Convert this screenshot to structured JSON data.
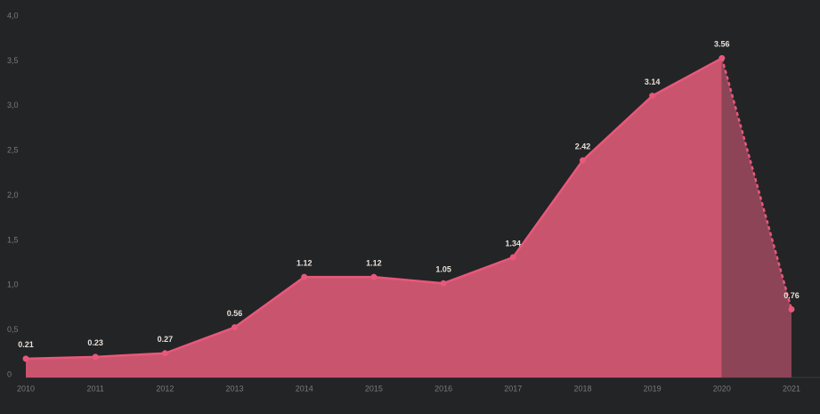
{
  "chart_data": {
    "type": "area",
    "x": [
      2010,
      2011,
      2012,
      2013,
      2014,
      2015,
      2016,
      2017,
      2018,
      2019,
      2020,
      2021
    ],
    "xlim": [
      2010,
      2021
    ],
    "xticks": [
      2010,
      2011,
      2012,
      2013,
      2014,
      2015,
      2016,
      2017,
      2018,
      2019,
      2020,
      2021
    ],
    "values": [
      0.21,
      0.23,
      0.27,
      0.56,
      1.12,
      1.12,
      1.05,
      1.34,
      2.42,
      3.14,
      3.56,
      0.76
    ],
    "color": "#e8587a",
    "ylim": [
      0,
      4
    ],
    "yticks": [
      0,
      {
        "value": 0.5,
        "label": "0,5"
      },
      {
        "value": 1.0,
        "label": "1,0"
      },
      {
        "value": 1.5,
        "label": "1,5"
      },
      {
        "value": 2.0,
        "label": "2,0"
      },
      {
        "value": 2.5,
        "label": "2,5"
      },
      {
        "value": 3.0,
        "label": "3,0"
      },
      {
        "value": 3.5,
        "label": "3,5"
      },
      {
        "value": 4.0,
        "label": "4,0"
      }
    ],
    "grid": false
  }
}
